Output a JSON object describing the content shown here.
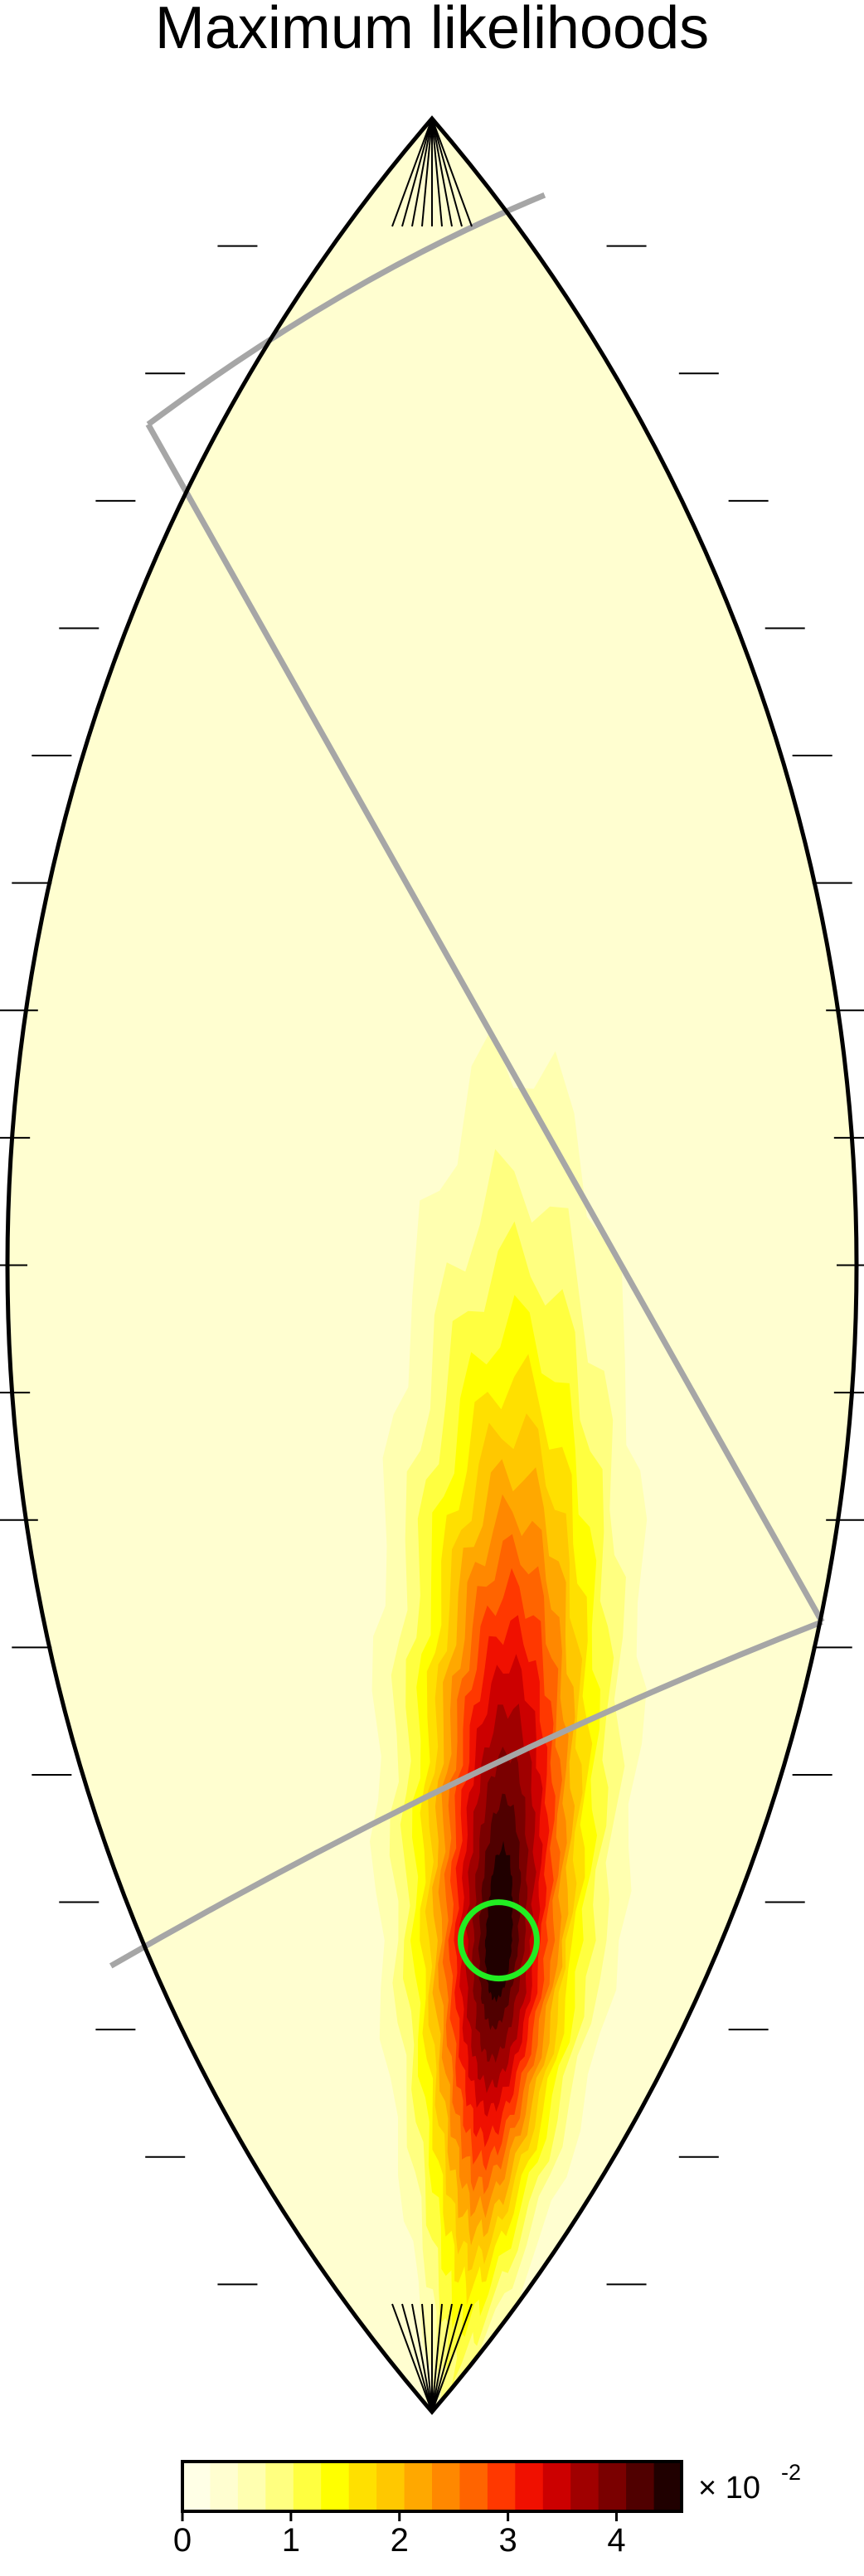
{
  "chart_data": {
    "type": "heatmap",
    "title": "Maximum likelihoods",
    "projection": "lens-shaped global map (sinusoidal)",
    "colormap": [
      "#ffffe6",
      "#fffed0",
      "#ffffb0",
      "#ffff80",
      "#ffff40",
      "#ffff00",
      "#ffe000",
      "#ffc800",
      "#ffa800",
      "#ff8800",
      "#ff6400",
      "#ff3800",
      "#f01000",
      "#cc0000",
      "#a00000",
      "#7a0000",
      "#500000",
      "#200000"
    ],
    "colorbar": {
      "ticks": [
        "0",
        "1",
        "2",
        "3",
        "4"
      ],
      "range": [
        0,
        4.6
      ],
      "multiplier": "× 10",
      "multiplier_exponent": "-2"
    },
    "peak": {
      "lon": 35,
      "lat": -53,
      "value": 4.6
    },
    "marker": {
      "type": "circle",
      "color": "#22ee22",
      "lon": 35,
      "lat": -53
    },
    "footprint_color": "#a6a6a6",
    "grid": false
  }
}
